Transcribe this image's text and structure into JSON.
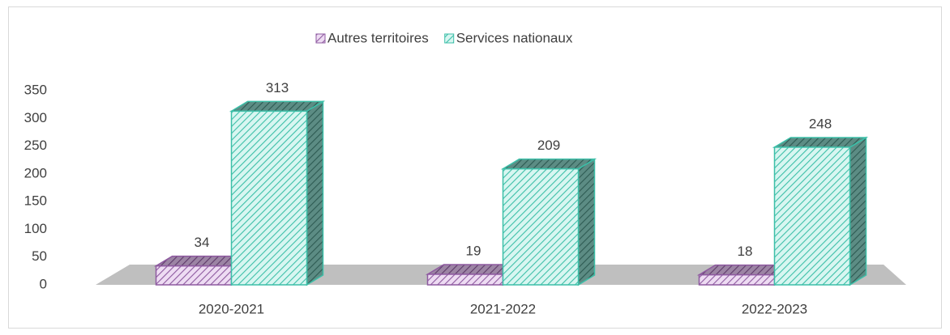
{
  "chart_data": {
    "type": "bar3d",
    "categories": [
      "2020-2021",
      "2021-2022",
      "2022-2023"
    ],
    "series": [
      {
        "name": "Autres territoires",
        "color": "#8e5aa0",
        "values": [
          34,
          19,
          18
        ]
      },
      {
        "name": "Services nationaux",
        "color": "#3cbfa8",
        "values": [
          313,
          209,
          248
        ]
      }
    ],
    "ylim": [
      0,
      350
    ],
    "yticks": [
      0,
      50,
      100,
      150,
      200,
      250,
      300,
      350
    ],
    "grid": false,
    "legend": "top"
  }
}
